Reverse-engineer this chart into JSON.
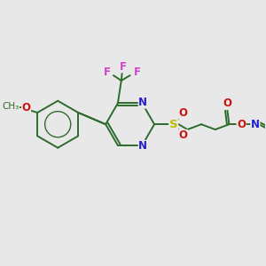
{
  "background_color": "#e8e8e8",
  "bond_color": "#2d6b2d",
  "atom_colors": {
    "F": "#cc44cc",
    "N": "#2222cc",
    "O": "#cc1111",
    "S": "#bbbb00"
  },
  "figsize": [
    3.0,
    3.0
  ],
  "dpi": 100
}
